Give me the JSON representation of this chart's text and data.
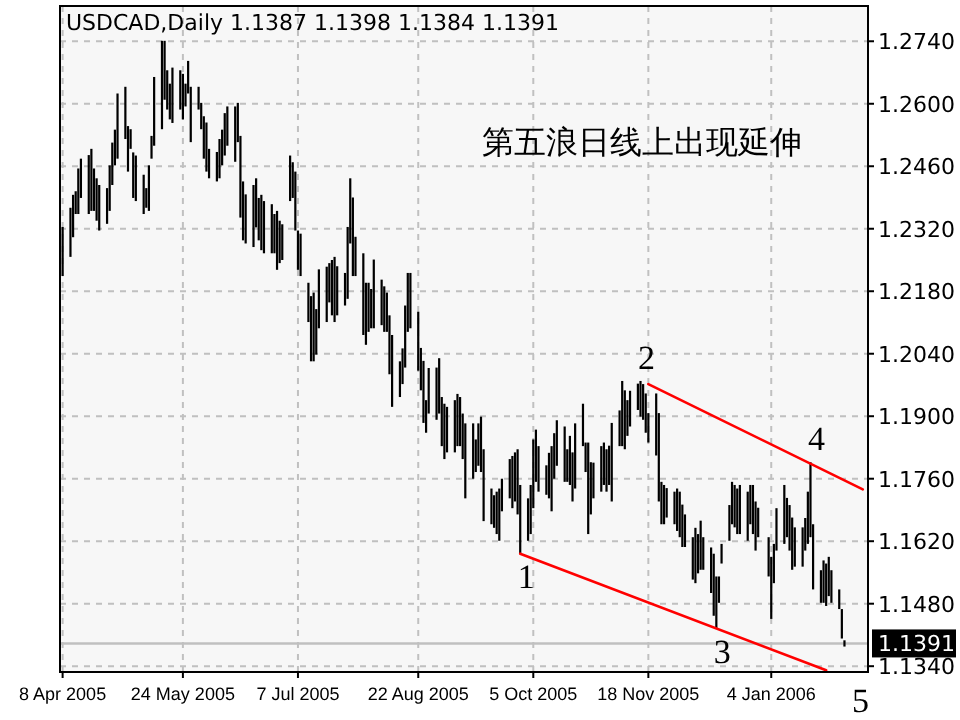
{
  "chart_data": {
    "type": "bar",
    "title": "USDCAD,Daily  1.1387 1.1398 1.1384 1.1391",
    "x": [
      "2005-04-08",
      "2005-04-11",
      "2005-04-12",
      "2005-04-13",
      "2005-04-14",
      "2005-04-15",
      "2005-04-18",
      "2005-04-19",
      "2005-04-20",
      "2005-04-21",
      "2005-04-22",
      "2005-04-25",
      "2005-04-26",
      "2005-04-27",
      "2005-04-28",
      "2005-04-29",
      "2005-05-02",
      "2005-05-03",
      "2005-05-04",
      "2005-05-05",
      "2005-05-06",
      "2005-05-09",
      "2005-05-10",
      "2005-05-11",
      "2005-05-12",
      "2005-05-13",
      "2005-05-16",
      "2005-05-17",
      "2005-05-18",
      "2005-05-19",
      "2005-05-20",
      "2005-05-23",
      "2005-05-24",
      "2005-05-25",
      "2005-05-26",
      "2005-05-27",
      "2005-05-30",
      "2005-05-31",
      "2005-06-01",
      "2005-06-02",
      "2005-06-03",
      "2005-06-06",
      "2005-06-07",
      "2005-06-08",
      "2005-06-09",
      "2005-06-10",
      "2005-06-13",
      "2005-06-14",
      "2005-06-15",
      "2005-06-16",
      "2005-06-17",
      "2005-06-20",
      "2005-06-21",
      "2005-06-22",
      "2005-06-23",
      "2005-06-24",
      "2005-06-27",
      "2005-06-28",
      "2005-06-29",
      "2005-06-30",
      "2005-07-01",
      "2005-07-04",
      "2005-07-05",
      "2005-07-06",
      "2005-07-07",
      "2005-07-08",
      "2005-07-11",
      "2005-07-12",
      "2005-07-13",
      "2005-07-14",
      "2005-07-15",
      "2005-07-18",
      "2005-07-19",
      "2005-07-20",
      "2005-07-21",
      "2005-07-22",
      "2005-07-25",
      "2005-07-26",
      "2005-07-27",
      "2005-07-28",
      "2005-07-29",
      "2005-08-01",
      "2005-08-02",
      "2005-08-03",
      "2005-08-04",
      "2005-08-05",
      "2005-08-08",
      "2005-08-09",
      "2005-08-10",
      "2005-08-11",
      "2005-08-12",
      "2005-08-15",
      "2005-08-16",
      "2005-08-17",
      "2005-08-18",
      "2005-08-19",
      "2005-08-22",
      "2005-08-23",
      "2005-08-24",
      "2005-08-25",
      "2005-08-26",
      "2005-08-29",
      "2005-08-30",
      "2005-08-31",
      "2005-09-01",
      "2005-09-02",
      "2005-09-05",
      "2005-09-06",
      "2005-09-07",
      "2005-09-08",
      "2005-09-09",
      "2005-09-12",
      "2005-09-13",
      "2005-09-14",
      "2005-09-15",
      "2005-09-16",
      "2005-09-19",
      "2005-09-20",
      "2005-09-21",
      "2005-09-22",
      "2005-09-23",
      "2005-09-26",
      "2005-09-27",
      "2005-09-28",
      "2005-09-29",
      "2005-09-30",
      "2005-10-03",
      "2005-10-04",
      "2005-10-05",
      "2005-10-06",
      "2005-10-07",
      "2005-10-10",
      "2005-10-11",
      "2005-10-12",
      "2005-10-13",
      "2005-10-14",
      "2005-10-17",
      "2005-10-18",
      "2005-10-19",
      "2005-10-20",
      "2005-10-21",
      "2005-10-24",
      "2005-10-25",
      "2005-10-26",
      "2005-10-27",
      "2005-10-28",
      "2005-10-31",
      "2005-11-01",
      "2005-11-02",
      "2005-11-03",
      "2005-11-04",
      "2005-11-07",
      "2005-11-08",
      "2005-11-09",
      "2005-11-10",
      "2005-11-11",
      "2005-11-14",
      "2005-11-15",
      "2005-11-16",
      "2005-11-17",
      "2005-11-18",
      "2005-11-21",
      "2005-11-22",
      "2005-11-23",
      "2005-11-24",
      "2005-11-25",
      "2005-11-28",
      "2005-11-29",
      "2005-11-30",
      "2005-12-01",
      "2005-12-02",
      "2005-12-05",
      "2005-12-06",
      "2005-12-07",
      "2005-12-08",
      "2005-12-09",
      "2005-12-12",
      "2005-12-13",
      "2005-12-14",
      "2005-12-15",
      "2005-12-16",
      "2005-12-19",
      "2005-12-20",
      "2005-12-21",
      "2005-12-22",
      "2005-12-23",
      "2005-12-26",
      "2005-12-27",
      "2005-12-28",
      "2005-12-29",
      "2005-12-30",
      "2006-01-03",
      "2006-01-04",
      "2006-01-05",
      "2006-01-06",
      "2006-01-09",
      "2006-01-10",
      "2006-01-11",
      "2006-01-12",
      "2006-01-13",
      "2006-01-16",
      "2006-01-17",
      "2006-01-18",
      "2006-01-19",
      "2006-01-20",
      "2006-01-23",
      "2006-01-24",
      "2006-01-25",
      "2006-01-26",
      "2006-01-27",
      "2006-01-30",
      "2006-01-31",
      "2006-02-01"
    ],
    "series": [
      {
        "color": "#000000",
        "base": [
          1.2214,
          1.2257,
          1.2301,
          1.2353,
          1.2353,
          1.2389,
          1.2353,
          1.236,
          1.236,
          1.2338,
          1.2316,
          1.2331,
          1.236,
          1.2418,
          1.2462,
          1.2477,
          1.2521,
          1.2448,
          1.2499,
          1.2389,
          1.2382,
          1.2353,
          1.2367,
          1.236,
          1.2477,
          1.2506,
          1.2543,
          1.2609,
          1.2587,
          1.2565,
          1.2557,
          1.2587,
          1.2565,
          1.2594,
          1.2623,
          1.2514,
          1.2587,
          1.2543,
          1.2477,
          1.2448,
          1.2433,
          1.2426,
          1.2433,
          1.2462,
          1.2484,
          1.2506,
          1.247,
          1.2514,
          1.2345,
          1.2294,
          1.2287,
          1.2279,
          1.2323,
          1.2294,
          1.2272,
          1.2265,
          1.2265,
          1.2265,
          1.2228,
          1.2243,
          1.225,
          1.2382,
          1.2389,
          1.2316,
          1.2228,
          1.2214,
          1.2111,
          1.2023,
          1.2023,
          1.2038,
          1.2097,
          1.2111,
          1.2155,
          1.2126,
          1.2111,
          1.2126,
          1.2148,
          1.2163,
          1.2287,
          1.2214,
          1.2214,
          1.2082,
          1.206,
          1.2089,
          1.2097,
          1.2097,
          1.2104,
          1.2089,
          1.2089,
          1.1994,
          1.1921,
          1.1943,
          1.1972,
          1.2009,
          1.2089,
          1.2097,
          1.2002,
          1.1958,
          1.1885,
          1.1863,
          1.1906,
          1.1892,
          1.1906,
          1.1833,
          1.1804,
          1.1819,
          1.1819,
          1.1833,
          1.1833,
          1.1804,
          1.1716,
          1.176,
          1.1775,
          1.1789,
          1.1775,
          1.1665,
          1.1658,
          1.165,
          1.1636,
          1.1621,
          1.1687,
          1.1716,
          1.1694,
          1.1709,
          1.168,
          1.1592,
          1.1621,
          1.1636,
          1.1694,
          1.1753,
          1.1731,
          1.1724,
          1.1716,
          1.1687,
          1.176,
          1.1789,
          1.1753,
          1.1753,
          1.1746,
          1.1709,
          1.1738,
          1.1833,
          1.1775,
          1.1636,
          1.168,
          1.1716,
          1.1731,
          1.1746,
          1.1731,
          1.1746,
          1.1709,
          1.1833,
          1.1833,
          1.1826,
          1.1856,
          1.1877,
          1.1914,
          1.1899,
          1.1892,
          1.1863,
          1.1841,
          1.1812,
          1.1709,
          1.1658,
          1.1658,
          1.1673,
          1.1658,
          1.1643,
          1.1629,
          1.1607,
          1.1607,
          1.1534,
          1.1526,
          1.1548,
          1.1556,
          1.1556,
          1.1504,
          1.1453,
          1.1424,
          1.1482,
          1.157,
          1.1621,
          1.1658,
          1.1651,
          1.1636,
          1.1636,
          1.1621,
          1.1658,
          1.1636,
          1.1599,
          1.1629,
          1.1541,
          1.1446,
          1.1526,
          1.1599,
          1.1614,
          1.1629,
          1.1599,
          1.1556,
          1.1563,
          1.1563,
          1.1599,
          1.1614,
          1.1629,
          1.1512,
          1.1482,
          1.1482,
          1.1475,
          1.1497,
          1.1482,
          1.1468,
          1.1402,
          1.1384
        ],
        "values": [
          0.011,
          0.011,
          0.0095,
          0.0051,
          0.0102,
          0.0088,
          0.0132,
          0.0139,
          0.0095,
          0.0095,
          0.0102,
          0.008,
          0.0102,
          0.0095,
          0.008,
          0.0146,
          0.0117,
          0.0102,
          0.0044,
          0.0102,
          0.0102,
          0.0088,
          0.0044,
          0.0102,
          0.0051,
          0.0154,
          0.0198,
          0.0132,
          0.0088,
          0.008,
          0.0124,
          0.0088,
          0.0102,
          0.0051,
          0.0073,
          0.0124,
          0.0051,
          0.0059,
          0.0095,
          0.011,
          0.0066,
          0.0066,
          0.0088,
          0.008,
          0.0095,
          0.0088,
          0.0124,
          0.0088,
          0.0183,
          0.0132,
          0.011,
          0.0139,
          0.011,
          0.0095,
          0.0124,
          0.0117,
          0.011,
          0.0088,
          0.0132,
          0.0095,
          0.008,
          0.0102,
          0.008,
          0.0132,
          0.0088,
          0.0095,
          0.0088,
          0.0146,
          0.0154,
          0.0102,
          0.0132,
          0.0124,
          0.0088,
          0.0124,
          0.0146,
          0.011,
          0.0073,
          0.0161,
          0.0146,
          0.0176,
          0.0088,
          0.0183,
          0.0139,
          0.011,
          0.0088,
          0.0154,
          0.0102,
          0.0102,
          0.0088,
          0.0132,
          0.0161,
          0.008,
          0.008,
          0.0139,
          0.0132,
          0.0124,
          0.0132,
          0.0095,
          0.0139,
          0.0073,
          0.0102,
          0.0117,
          0.0124,
          0.011,
          0.0124,
          0.0102,
          0.0117,
          0.0117,
          0.011,
          0.0102,
          0.0168,
          0.0124,
          0.0073,
          0.0095,
          0.0124,
          0.0161,
          0.008,
          0.0073,
          0.0095,
          0.0117,
          0.0073,
          0.0088,
          0.0117,
          0.011,
          0.0146,
          0.0154,
          0.0095,
          0.011,
          0.0154,
          0.0117,
          0.0102,
          0.0066,
          0.0102,
          0.0146,
          0.0102,
          0.0102,
          0.0124,
          0.0073,
          0.011,
          0.011,
          0.0146,
          0.0095,
          0.0066,
          0.0205,
          0.0117,
          0.008,
          0.0102,
          0.0095,
          0.0095,
          0.0088,
          0.0176,
          0.008,
          0.0146,
          0.0132,
          0.008,
          0.008,
          0.0059,
          0.008,
          0.008,
          0.0088,
          0.0066,
          0.0139,
          0.0198,
          0.0095,
          0.0088,
          0.0066,
          0.0073,
          0.0095,
          0.0102,
          0.0095,
          0.0073,
          0.0095,
          0.0124,
          0.0088,
          0.011,
          0.0073,
          0.0102,
          0.0139,
          0.0117,
          0.0059,
          0.0044,
          0.008,
          0.0095,
          0.0095,
          0.0102,
          0.011,
          0.011,
          0.0088,
          0.011,
          0.011,
          0.0066,
          0.0088,
          0.0139,
          0.0088,
          0.0095,
          0.0132,
          0.0088,
          0.0102,
          0.0117,
          0.0088,
          0.0088,
          0.0073,
          0.0117,
          0.0168,
          0.0146,
          0.0073,
          0.0095,
          0.0095,
          0.0088,
          0.0073,
          0.0044,
          0.0066,
          0.0014
        ]
      },
      {
        "type": "line",
        "color": "#ff0000",
        "x": [
          "2005-09-30",
          "2006-01-25"
        ],
        "values": [
          1.1592,
          1.1331
        ]
      },
      {
        "type": "line",
        "color": "#ff0000",
        "x": [
          "2005-11-18",
          "2006-02-08"
        ],
        "values": [
          1.1972,
          1.1736
        ]
      }
    ],
    "xlim": [
      "2005-04-07",
      "2006-02-10"
    ],
    "xticks": [
      {
        "value": "2005-04-08",
        "label": "8 Apr 2005"
      },
      {
        "value": "2005-05-24",
        "label": "24 May 2005"
      },
      {
        "value": "2005-07-07",
        "label": "7 Jul 2005"
      },
      {
        "value": "2005-08-22",
        "label": "22 Aug 2005"
      },
      {
        "value": "2005-10-05",
        "label": "5 Oct 2005"
      },
      {
        "value": "2005-11-18",
        "label": "18 Nov 2005"
      },
      {
        "value": "2006-01-04",
        "label": "4 Jan 2006"
      }
    ],
    "ylim": [
      1.1327,
      1.2819
    ],
    "yticks": [
      {
        "value": 1.134,
        "label": "1.1340"
      },
      {
        "value": 1.148,
        "label": "1.1480"
      },
      {
        "value": 1.162,
        "label": "1.1620"
      },
      {
        "value": 1.176,
        "label": "1.1760"
      },
      {
        "value": 1.19,
        "label": "1.1900"
      },
      {
        "value": 1.204,
        "label": "1.2040"
      },
      {
        "value": 1.218,
        "label": "1.2180"
      },
      {
        "value": 1.232,
        "label": "1.2320"
      },
      {
        "value": 1.246,
        "label": "1.2460"
      },
      {
        "value": 1.26,
        "label": "1.2600"
      },
      {
        "value": 1.274,
        "label": "1.2740"
      }
    ],
    "grid": true,
    "ref_lines": [
      {
        "axis": "y",
        "value": 1.1391,
        "label": "1.1391",
        "color": "#c0c0c0"
      }
    ],
    "annotations": [
      "第五浪日线上出现延伸",
      {
        "text": "1",
        "x": "2005-09-30",
        "y": 1.1592
      },
      {
        "text": "2",
        "x": "2005-11-15",
        "y": 1.1979
      },
      {
        "text": "3",
        "x": "2005-12-14",
        "y": 1.1424
      },
      {
        "text": "4",
        "x": "2006-01-19",
        "y": 1.1797
      },
      {
        "text": "5",
        "x": "2006-02-01",
        "y": 1.1384
      }
    ]
  }
}
